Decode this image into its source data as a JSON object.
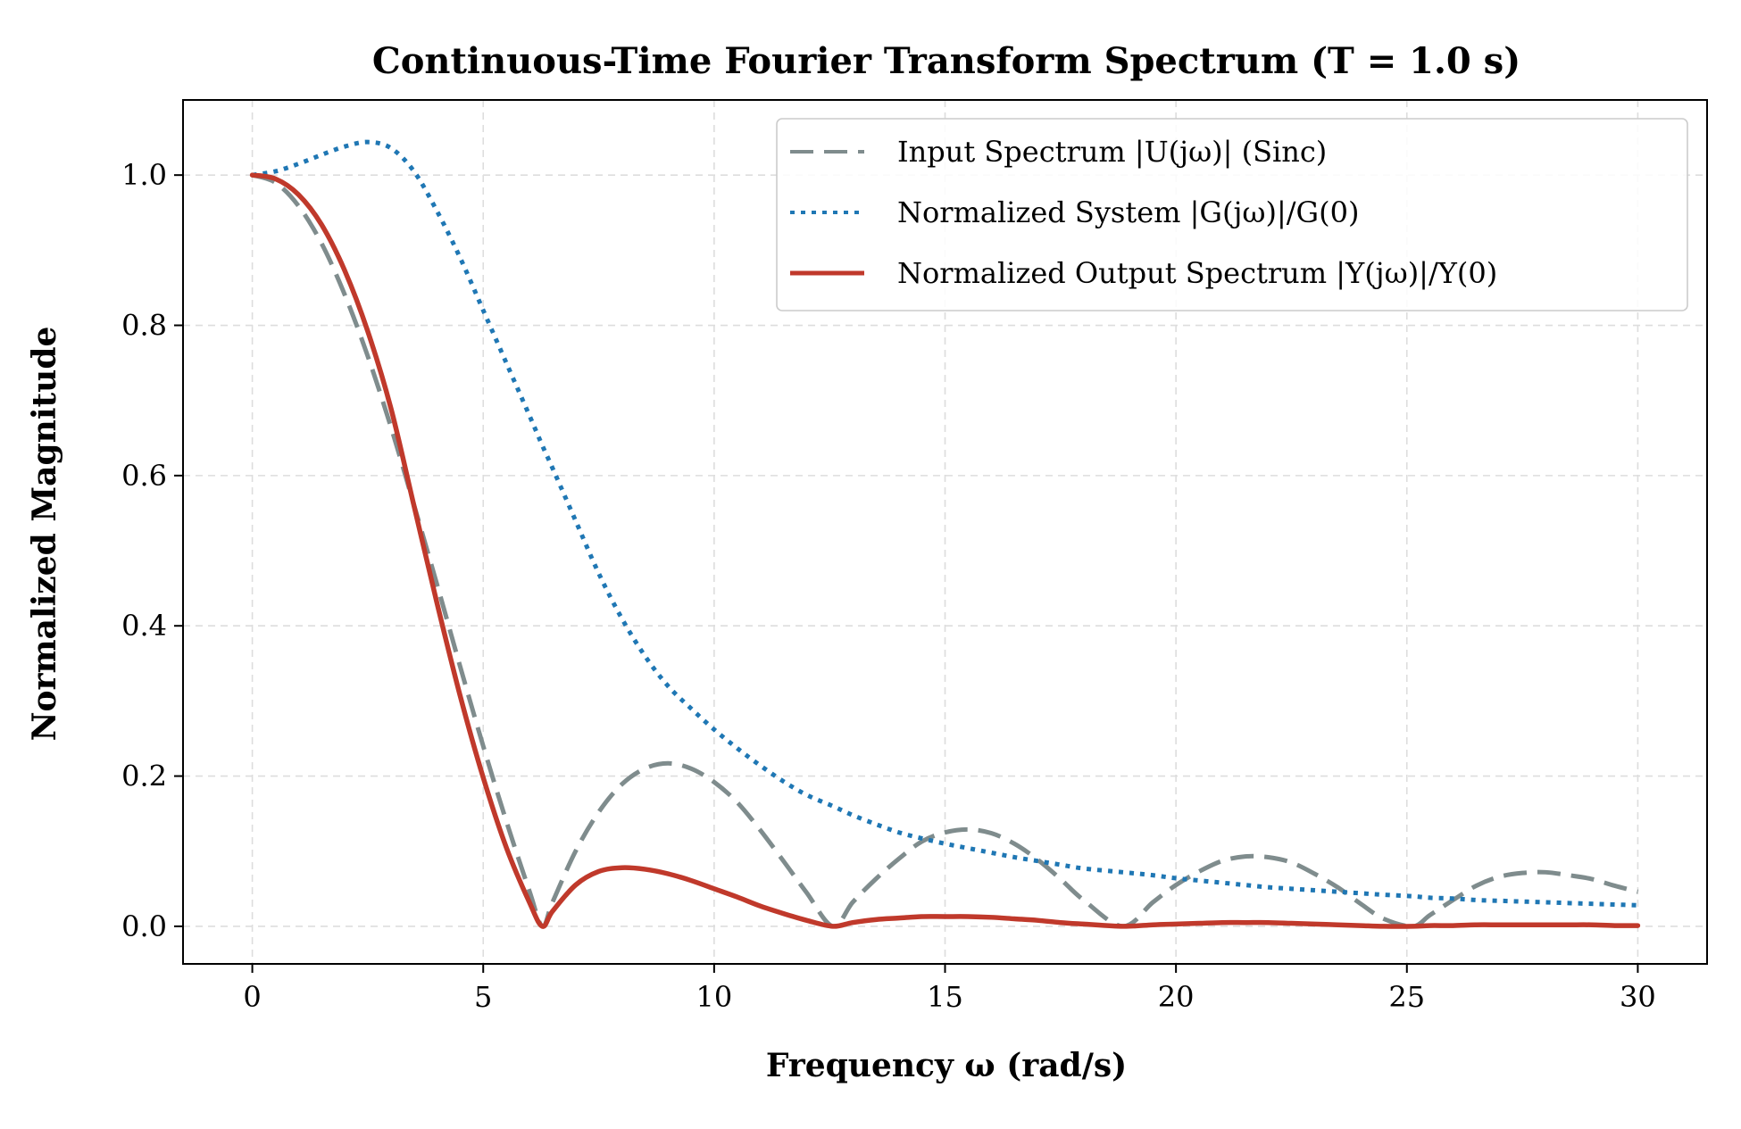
{
  "chart_data": {
    "type": "line",
    "title": "Continuous-Time Fourier Transform Spectrum (T = 1.0 s)",
    "xlabel": "Frequency ω (rad/s)",
    "ylabel": "Normalized Magnitude",
    "xlim": [
      -1.5,
      31.5
    ],
    "ylim": [
      -0.05,
      1.1
    ],
    "xticks": [
      0,
      5,
      10,
      15,
      20,
      25,
      30
    ],
    "yticks": [
      0.0,
      0.2,
      0.4,
      0.6,
      0.8,
      1.0
    ],
    "xtick_labels": [
      "0",
      "5",
      "10",
      "15",
      "20",
      "25",
      "30"
    ],
    "ytick_labels": [
      "0.0",
      "0.2",
      "0.4",
      "0.6",
      "0.8",
      "1.0"
    ],
    "grid": true,
    "legend_position": "top-right",
    "x": [
      0,
      0.5,
      1,
      1.5,
      2,
      2.5,
      3,
      3.5,
      4,
      4.5,
      5,
      5.5,
      6,
      6.28,
      6.5,
      7,
      7.5,
      8,
      8.5,
      9,
      9.5,
      10,
      10.5,
      11,
      11.5,
      12,
      12.57,
      13,
      13.5,
      14,
      14.5,
      15,
      15.5,
      16,
      16.5,
      17,
      17.5,
      18,
      18.85,
      19.5,
      20,
      20.5,
      21,
      21.5,
      22,
      22.5,
      23,
      23.5,
      24,
      24.5,
      25.13,
      25.5,
      26,
      26.5,
      27,
      27.5,
      28,
      28.5,
      29,
      29.5,
      30
    ],
    "series": [
      {
        "name": "Input Spectrum |U(jω)| (Sinc)",
        "color": "#7f8c8d",
        "style": "dashed",
        "values": [
          1.0,
          0.99,
          0.959,
          0.909,
          0.841,
          0.759,
          0.665,
          0.561,
          0.455,
          0.346,
          0.24,
          0.14,
          0.047,
          0.0,
          0.032,
          0.1,
          0.152,
          0.189,
          0.21,
          0.217,
          0.21,
          0.192,
          0.165,
          0.128,
          0.087,
          0.045,
          0.0,
          0.032,
          0.063,
          0.09,
          0.113,
          0.125,
          0.129,
          0.124,
          0.11,
          0.089,
          0.063,
          0.035,
          0.0,
          0.032,
          0.055,
          0.073,
          0.087,
          0.093,
          0.092,
          0.085,
          0.07,
          0.052,
          0.03,
          0.01,
          0.0,
          0.015,
          0.035,
          0.054,
          0.066,
          0.071,
          0.072,
          0.068,
          0.063,
          0.054,
          0.046
        ]
      },
      {
        "name": "Normalized System |G(jω)|/G(0)",
        "color": "#1f77b4",
        "style": "dotted",
        "values": [
          1.0,
          1.005,
          1.015,
          1.027,
          1.038,
          1.044,
          1.036,
          1.005,
          0.952,
          0.89,
          0.82,
          0.75,
          0.68,
          0.64,
          0.61,
          0.54,
          0.47,
          0.41,
          0.36,
          0.32,
          0.29,
          0.262,
          0.237,
          0.214,
          0.193,
          0.175,
          0.16,
          0.148,
          0.136,
          0.125,
          0.117,
          0.11,
          0.104,
          0.098,
          0.092,
          0.087,
          0.082,
          0.077,
          0.072,
          0.068,
          0.064,
          0.061,
          0.058,
          0.055,
          0.052,
          0.05,
          0.048,
          0.046,
          0.044,
          0.042,
          0.04,
          0.038,
          0.037,
          0.035,
          0.034,
          0.033,
          0.032,
          0.031,
          0.03,
          0.029,
          0.028
        ]
      },
      {
        "name": "Normalized Output Spectrum |Y(jω)|/Y(0)",
        "color": "#c0392b",
        "style": "solid",
        "values": [
          1.0,
          0.995,
          0.974,
          0.934,
          0.873,
          0.792,
          0.69,
          0.56,
          0.43,
          0.307,
          0.198,
          0.105,
          0.032,
          0.0,
          0.02,
          0.055,
          0.073,
          0.078,
          0.076,
          0.07,
          0.061,
          0.05,
          0.039,
          0.027,
          0.017,
          0.008,
          0.0,
          0.005,
          0.009,
          0.011,
          0.013,
          0.013,
          0.013,
          0.012,
          0.01,
          0.008,
          0.005,
          0.003,
          0.0,
          0.002,
          0.003,
          0.004,
          0.005,
          0.005,
          0.005,
          0.004,
          0.003,
          0.002,
          0.001,
          0.0,
          0.0,
          0.001,
          0.001,
          0.002,
          0.002,
          0.002,
          0.002,
          0.002,
          0.002,
          0.001,
          0.001
        ]
      }
    ]
  }
}
